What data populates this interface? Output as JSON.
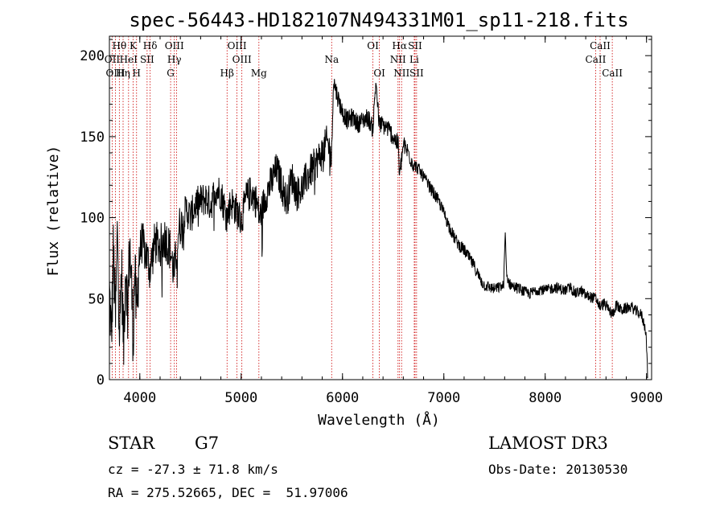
{
  "chart_data": {
    "type": "line",
    "title": "spec-56443-HD182107N494331M01_sp11-218.fits",
    "xlabel": "Wavelength (Å)",
    "ylabel": "Flux (relative)",
    "xlim": [
      3700,
      9050
    ],
    "ylim": [
      0,
      212
    ],
    "xticks": [
      4000,
      5000,
      6000,
      7000,
      8000,
      9000
    ],
    "yticks": [
      0,
      50,
      100,
      150,
      200
    ],
    "series": [
      {
        "name": "flux",
        "color": "#000000",
        "anchors": [
          [
            3700,
            55
          ],
          [
            3720,
            25
          ],
          [
            3740,
            80
          ],
          [
            3760,
            35
          ],
          [
            3780,
            95
          ],
          [
            3800,
            30
          ],
          [
            3820,
            70
          ],
          [
            3840,
            20
          ],
          [
            3860,
            75
          ],
          [
            3880,
            40
          ],
          [
            3900,
            85
          ],
          [
            3920,
            55
          ],
          [
            3935,
            25
          ],
          [
            3950,
            70
          ],
          [
            3968,
            35
          ],
          [
            3990,
            75
          ],
          [
            4020,
            85
          ],
          [
            4060,
            78
          ],
          [
            4100,
            68
          ],
          [
            4150,
            85
          ],
          [
            4200,
            82
          ],
          [
            4250,
            88
          ],
          [
            4300,
            80
          ],
          [
            4340,
            65
          ],
          [
            4380,
            92
          ],
          [
            4420,
            98
          ],
          [
            4460,
            105
          ],
          [
            4500,
            100
          ],
          [
            4550,
            108
          ],
          [
            4600,
            110
          ],
          [
            4650,
            112
          ],
          [
            4700,
            108
          ],
          [
            4750,
            118
          ],
          [
            4800,
            115
          ],
          [
            4861,
            100
          ],
          [
            4900,
            110
          ],
          [
            4950,
            105
          ],
          [
            5000,
            98
          ],
          [
            5050,
            112
          ],
          [
            5100,
            116
          ],
          [
            5150,
            110
          ],
          [
            5183,
            100
          ],
          [
            5250,
            115
          ],
          [
            5300,
            122
          ],
          [
            5350,
            130
          ],
          [
            5400,
            120
          ],
          [
            5450,
            110
          ],
          [
            5500,
            125
          ],
          [
            5550,
            115
          ],
          [
            5600,
            118
          ],
          [
            5650,
            125
          ],
          [
            5700,
            130
          ],
          [
            5750,
            135
          ],
          [
            5800,
            140
          ],
          [
            5850,
            147
          ],
          [
            5893,
            137
          ],
          [
            5910,
            185
          ],
          [
            5950,
            175
          ],
          [
            6000,
            165
          ],
          [
            6050,
            160
          ],
          [
            6100,
            162
          ],
          [
            6150,
            158
          ],
          [
            6200,
            160
          ],
          [
            6250,
            162
          ],
          [
            6300,
            155
          ],
          [
            6330,
            185
          ],
          [
            6360,
            158
          ],
          [
            6400,
            157
          ],
          [
            6450,
            155
          ],
          [
            6500,
            150
          ],
          [
            6550,
            145
          ],
          [
            6563,
            125
          ],
          [
            6600,
            145
          ],
          [
            6650,
            140
          ],
          [
            6700,
            133
          ],
          [
            6750,
            130
          ],
          [
            6800,
            125
          ],
          [
            6850,
            120
          ],
          [
            6900,
            115
          ],
          [
            6950,
            110
          ],
          [
            7000,
            103
          ],
          [
            7050,
            95
          ],
          [
            7100,
            88
          ],
          [
            7150,
            83
          ],
          [
            7200,
            80
          ],
          [
            7250,
            75
          ],
          [
            7300,
            70
          ],
          [
            7350,
            63
          ],
          [
            7400,
            58
          ],
          [
            7450,
            57
          ],
          [
            7500,
            56
          ],
          [
            7550,
            57
          ],
          [
            7590,
            58
          ],
          [
            7605,
            90
          ],
          [
            7620,
            64
          ],
          [
            7650,
            59
          ],
          [
            7700,
            57
          ],
          [
            7750,
            56
          ],
          [
            7800,
            54
          ],
          [
            7850,
            53
          ],
          [
            7900,
            55
          ],
          [
            7950,
            56
          ],
          [
            8000,
            55
          ],
          [
            8050,
            56
          ],
          [
            8100,
            57
          ],
          [
            8150,
            56
          ],
          [
            8200,
            55
          ],
          [
            8250,
            57
          ],
          [
            8300,
            53
          ],
          [
            8350,
            55
          ],
          [
            8400,
            52
          ],
          [
            8450,
            51
          ],
          [
            8500,
            50
          ],
          [
            8542,
            45
          ],
          [
            8580,
            47
          ],
          [
            8620,
            44
          ],
          [
            8662,
            40
          ],
          [
            8700,
            46
          ],
          [
            8750,
            43
          ],
          [
            8800,
            44
          ],
          [
            8850,
            45
          ],
          [
            8900,
            42
          ],
          [
            8950,
            40
          ],
          [
            8995,
            30
          ],
          [
            9010,
            3
          ]
        ]
      }
    ],
    "lines": [
      {
        "name": "OII",
        "wavelength": 3727,
        "labels": [
          {
            "text": "OII",
            "row": 1
          }
        ]
      },
      {
        "name": "H-theta",
        "wavelength": 3798,
        "labels": [
          {
            "text": "Hθ",
            "row": 0
          }
        ]
      },
      {
        "name": "OIII",
        "wavelength": 3760,
        "labels": [
          {
            "text": "OIII",
            "row": 2
          }
        ]
      },
      {
        "name": "H-eta",
        "wavelength": 3835,
        "labels": [
          {
            "text": "Hη",
            "row": 2
          }
        ]
      },
      {
        "name": "HeI",
        "wavelength": 3889,
        "labels": [
          {
            "text": "HeI",
            "row": 1
          }
        ]
      },
      {
        "name": "K",
        "wavelength": 3934,
        "labels": [
          {
            "text": "K",
            "row": 0
          }
        ]
      },
      {
        "name": "H",
        "wavelength": 3968,
        "labels": [
          {
            "text": "H",
            "row": 2
          }
        ]
      },
      {
        "name": "SII",
        "wavelength": 4072,
        "labels": [
          {
            "text": "SII",
            "row": 1
          }
        ]
      },
      {
        "name": "H-delta",
        "wavelength": 4102,
        "labels": [
          {
            "text": "Hδ",
            "row": 0
          }
        ]
      },
      {
        "name": "G",
        "wavelength": 4304,
        "labels": [
          {
            "text": "G",
            "row": 2
          }
        ]
      },
      {
        "name": "H-gamma",
        "wavelength": 4341,
        "labels": [
          {
            "text": "OIII",
            "row": 0
          },
          {
            "text": "Hγ",
            "row": 1
          }
        ]
      },
      {
        "name": "OIII-4363",
        "wavelength": 4363,
        "labels": []
      },
      {
        "name": "H-beta",
        "wavelength": 4861,
        "labels": [
          {
            "text": "Hβ",
            "row": 2
          }
        ]
      },
      {
        "name": "OIII-4959",
        "wavelength": 4959,
        "labels": [
          {
            "text": "OIII",
            "row": 0
          }
        ]
      },
      {
        "name": "OIII-5007",
        "wavelength": 5007,
        "labels": [
          {
            "text": "OIII",
            "row": 1
          }
        ]
      },
      {
        "name": "Mg",
        "wavelength": 5175,
        "labels": [
          {
            "text": "Mg",
            "row": 2
          }
        ]
      },
      {
        "name": "Na",
        "wavelength": 5893,
        "labels": [
          {
            "text": "Na",
            "row": 1
          }
        ]
      },
      {
        "name": "OI-6300",
        "wavelength": 6300,
        "labels": [
          {
            "text": "OI",
            "row": 0
          }
        ]
      },
      {
        "name": "OI-6364",
        "wavelength": 6364,
        "labels": [
          {
            "text": "OI",
            "row": 2
          }
        ]
      },
      {
        "name": "NII-6548",
        "wavelength": 6548,
        "labels": [
          {
            "text": "NII",
            "row": 1
          }
        ]
      },
      {
        "name": "H-alpha",
        "wavelength": 6563,
        "labels": [
          {
            "text": "Hα",
            "row": 0
          }
        ]
      },
      {
        "name": "NII-6583",
        "wavelength": 6583,
        "labels": [
          {
            "text": "NII",
            "row": 2
          }
        ]
      },
      {
        "name": "Li",
        "wavelength": 6708,
        "labels": [
          {
            "text": "Li",
            "row": 1
          }
        ]
      },
      {
        "name": "SII-6716",
        "wavelength": 6716,
        "labels": [
          {
            "text": "SII",
            "row": 0
          }
        ]
      },
      {
        "name": "SII-6731",
        "wavelength": 6731,
        "labels": [
          {
            "text": "SII",
            "row": 2
          }
        ]
      },
      {
        "name": "CaII-8498",
        "wavelength": 8498,
        "labels": [
          {
            "text": "CaII",
            "row": 1
          }
        ]
      },
      {
        "name": "CaII-8542",
        "wavelength": 8542,
        "labels": [
          {
            "text": "CaII",
            "row": 0
          }
        ]
      },
      {
        "name": "CaII-8662",
        "wavelength": 8662,
        "labels": [
          {
            "text": "CaII",
            "row": 2
          }
        ]
      }
    ],
    "line_color": "#cc0000"
  },
  "info": {
    "object_type": "STAR",
    "subclass": "G7",
    "survey": "LAMOST DR3",
    "redshift": "cz = -27.3 ± 71.8 km/s",
    "obs_date": "Obs-Date: 20130530",
    "coordinates": "RA = 275.52665, DEC =  51.97006"
  }
}
